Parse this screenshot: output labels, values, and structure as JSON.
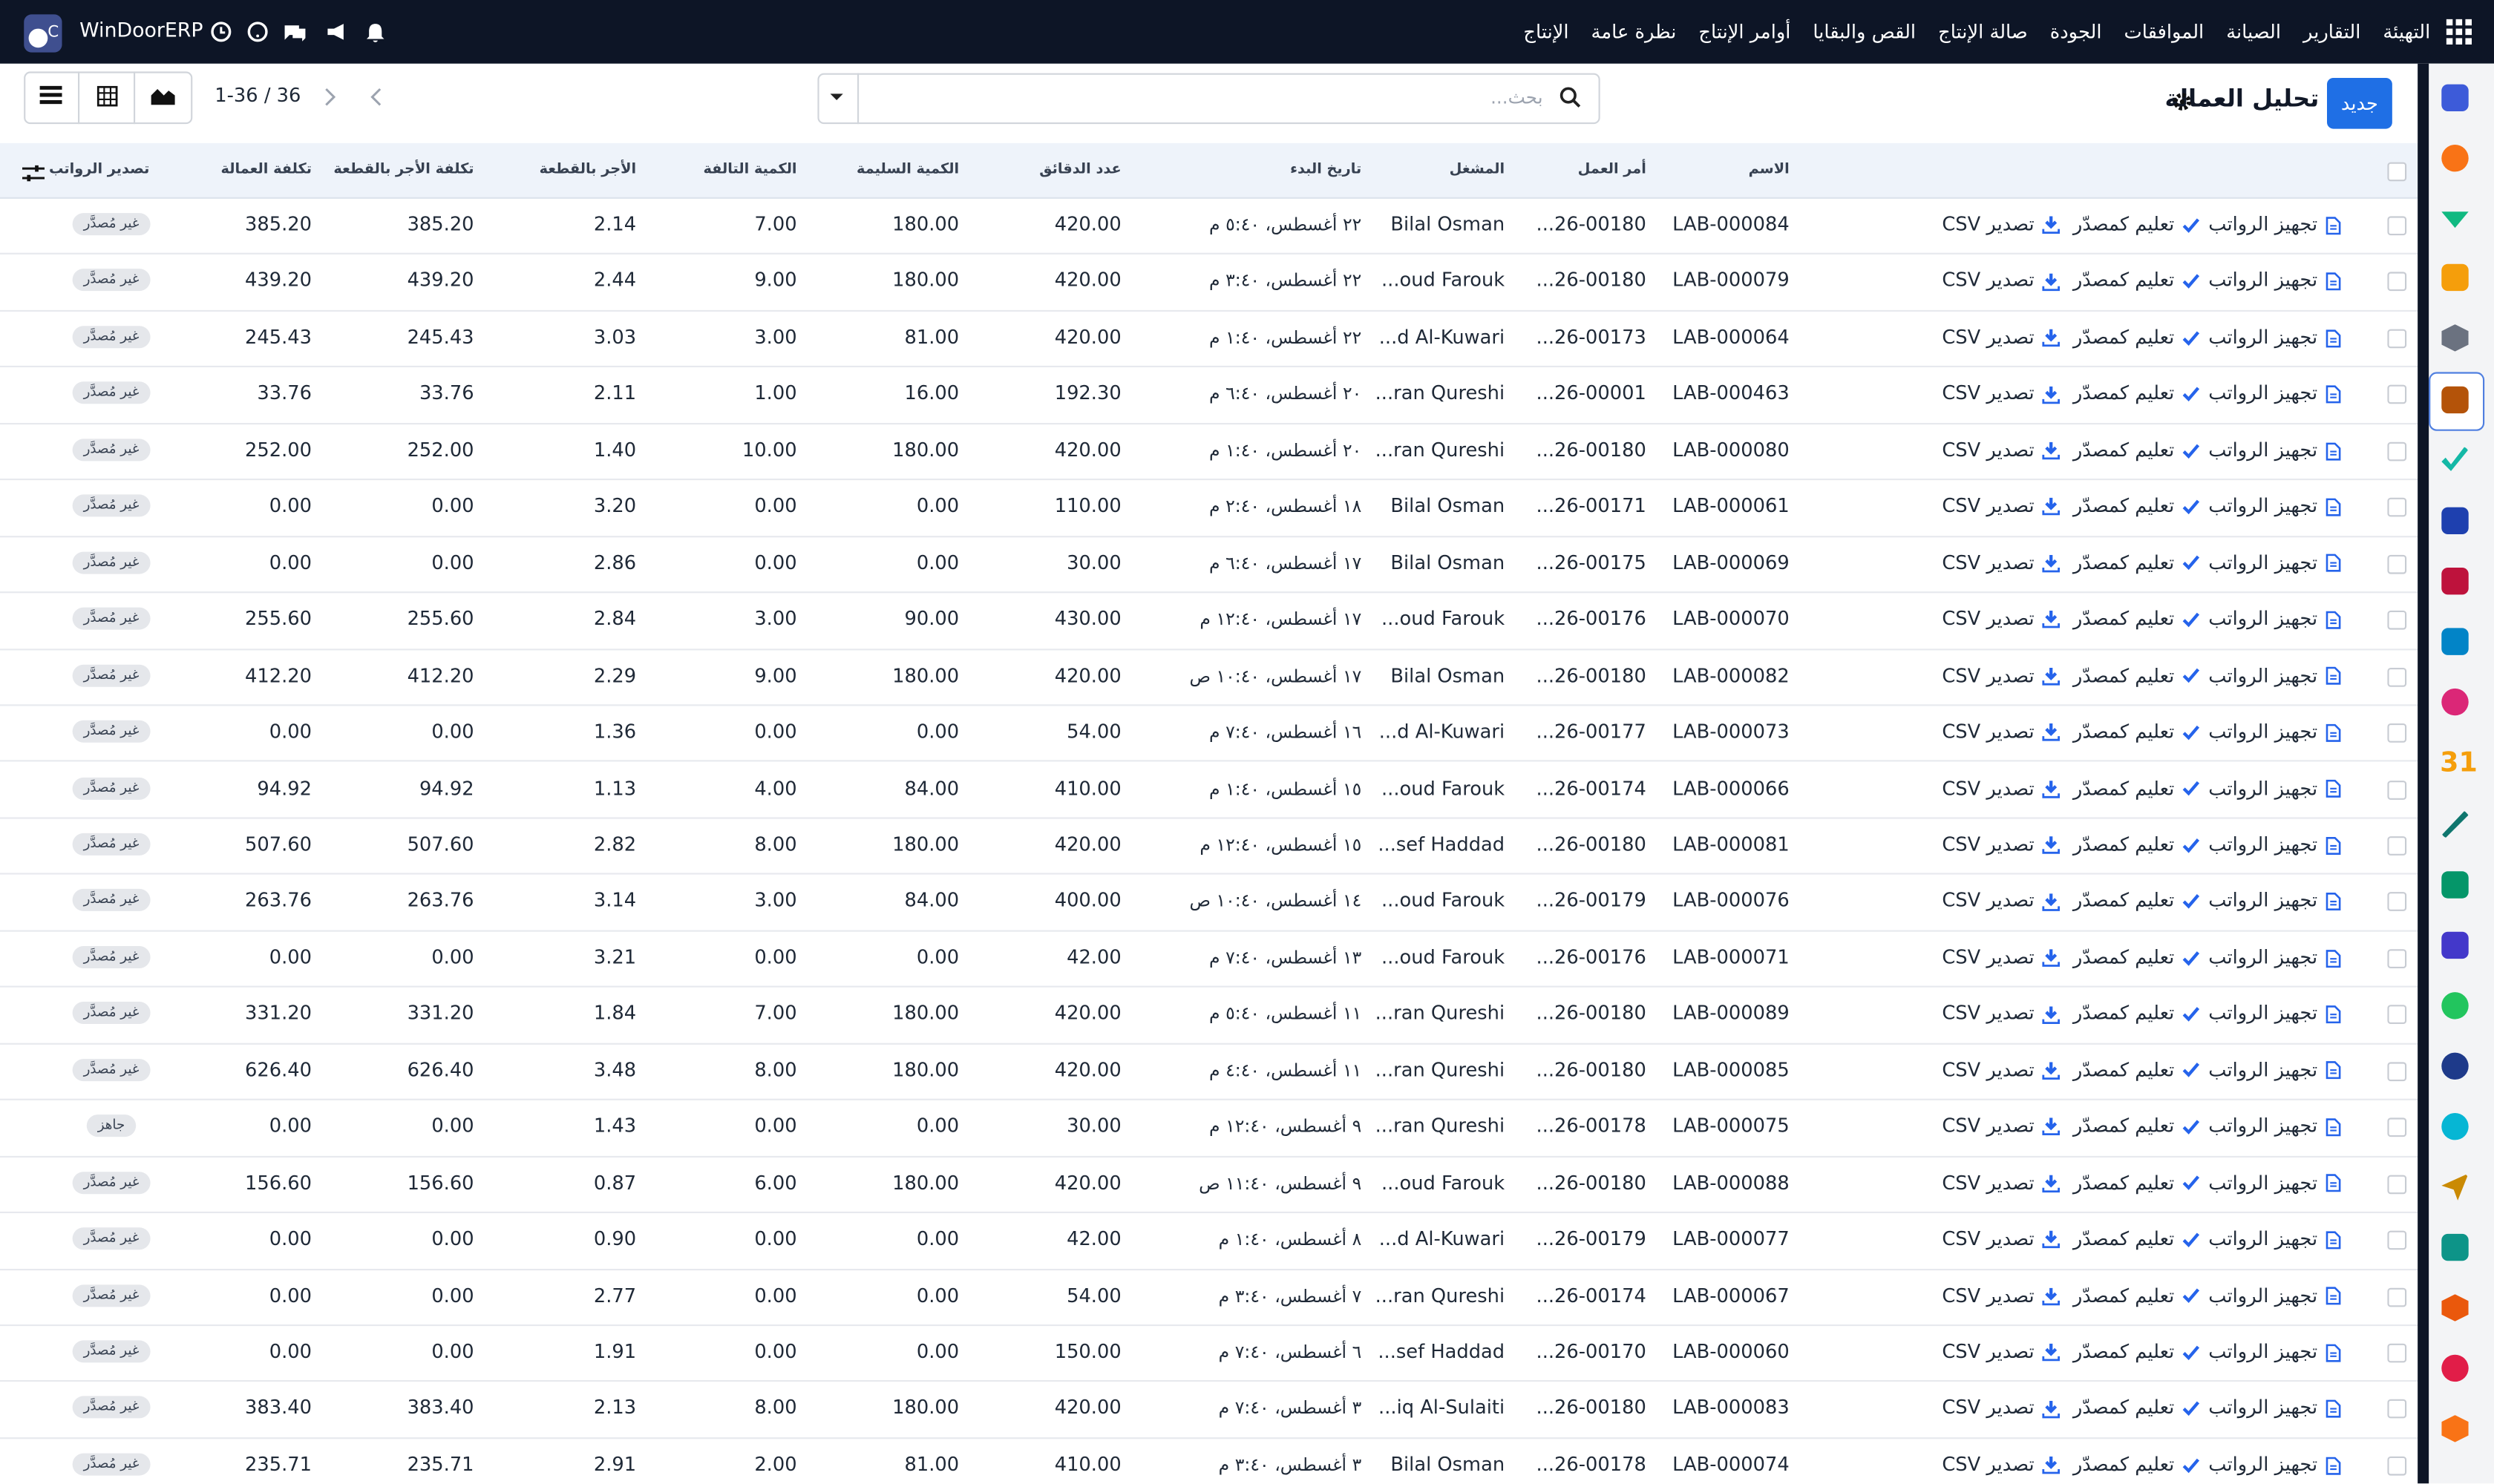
{
  "navbar": {
    "brand": "WinDoorERP",
    "menu": [
      "الإنتاج",
      "نظرة عامة",
      "أوامر الإنتاج",
      "القص والبقايا",
      "صالة الإنتاج",
      "الجودة",
      "الموافقات",
      "الصيانة",
      "التقارير",
      "التهيئة"
    ]
  },
  "control_panel": {
    "new_button": "جديد",
    "title": "تحليل العمالة",
    "search_placeholder": "بحث...",
    "pager": "1-36 / 36"
  },
  "sidebar": {
    "calendar_icon": "31"
  },
  "table": {
    "columns": [
      "الاسم",
      "أمر العمل",
      "المشغل",
      "تاريخ البدء",
      "عدد الدقائق",
      "الكمية السليمة",
      "الكمية التالفة",
      "الأجر بالقطعة",
      "تكلفة الأجر بالقطعة",
      "تكلفة العمالة",
      "تصدير الرواتب"
    ],
    "row_actions": [
      "تجهيز الرواتب",
      "تعليم كمصدّر",
      "تصدير CSV"
    ],
    "rows": [
      [
        "LAB-000084",
        "...26-00180",
        "Bilal Osman",
        "٢٢ أغسطس، ٥:٤٠ م",
        "420.00",
        "180.00",
        "7.00",
        "2.14",
        "385.20",
        "385.20",
        "غير مُصدَّر"
      ],
      [
        "LAB-000079",
        "...26-00180",
        "...oud Farouk",
        "٢٢ أغسطس، ٣:٤٠ م",
        "420.00",
        "180.00",
        "9.00",
        "2.44",
        "439.20",
        "439.20",
        "غير مُصدَّر"
      ],
      [
        "LAB-000064",
        "...26-00173",
        "...d Al-Kuwari",
        "٢٢ أغسطس، ١:٤٠ م",
        "420.00",
        "81.00",
        "3.00",
        "3.03",
        "245.43",
        "245.43",
        "غير مُصدَّر"
      ],
      [
        "LAB-000463",
        "...26-00001",
        "...ran Qureshi",
        "٢٠ أغسطس، ٦:٤٠ م",
        "192.30",
        "16.00",
        "1.00",
        "2.11",
        "33.76",
        "33.76",
        "غير مُصدَّر"
      ],
      [
        "LAB-000080",
        "...26-00180",
        "...ran Qureshi",
        "٢٠ أغسطس، ١:٤٠ م",
        "420.00",
        "180.00",
        "10.00",
        "1.40",
        "252.00",
        "252.00",
        "غير مُصدَّر"
      ],
      [
        "LAB-000061",
        "...26-00171",
        "Bilal Osman",
        "١٨ أغسطس، ٢:٤٠ م",
        "110.00",
        "0.00",
        "0.00",
        "3.20",
        "0.00",
        "0.00",
        "غير مُصدَّر"
      ],
      [
        "LAB-000069",
        "...26-00175",
        "Bilal Osman",
        "١٧ أغسطس، ٦:٤٠ م",
        "30.00",
        "0.00",
        "0.00",
        "2.86",
        "0.00",
        "0.00",
        "غير مُصدَّر"
      ],
      [
        "LAB-000070",
        "...26-00176",
        "...oud Farouk",
        "١٧ أغسطس، ١٢:٤٠ م",
        "430.00",
        "90.00",
        "3.00",
        "2.84",
        "255.60",
        "255.60",
        "غير مُصدَّر"
      ],
      [
        "LAB-000082",
        "...26-00180",
        "Bilal Osman",
        "١٧ أغسطس، ١٠:٤٠ ص",
        "420.00",
        "180.00",
        "9.00",
        "2.29",
        "412.20",
        "412.20",
        "غير مُصدَّر"
      ],
      [
        "LAB-000073",
        "...26-00177",
        "...d Al-Kuwari",
        "١٦ أغسطس، ٧:٤٠ م",
        "54.00",
        "0.00",
        "0.00",
        "1.36",
        "0.00",
        "0.00",
        "غير مُصدَّر"
      ],
      [
        "LAB-000066",
        "...26-00174",
        "...oud Farouk",
        "١٥ أغسطس، ١:٤٠ م",
        "410.00",
        "84.00",
        "4.00",
        "1.13",
        "94.92",
        "94.92",
        "غير مُصدَّر"
      ],
      [
        "LAB-000081",
        "...26-00180",
        "...sef Haddad",
        "١٥ أغسطس، ١٢:٤٠ م",
        "420.00",
        "180.00",
        "8.00",
        "2.82",
        "507.60",
        "507.60",
        "غير مُصدَّر"
      ],
      [
        "LAB-000076",
        "...26-00179",
        "...oud Farouk",
        "١٤ أغسطس، ١٠:٤٠ ص",
        "400.00",
        "84.00",
        "3.00",
        "3.14",
        "263.76",
        "263.76",
        "غير مُصدَّر"
      ],
      [
        "LAB-000071",
        "...26-00176",
        "...oud Farouk",
        "١٣ أغسطس، ٧:٤٠ م",
        "42.00",
        "0.00",
        "0.00",
        "3.21",
        "0.00",
        "0.00",
        "غير مُصدَّر"
      ],
      [
        "LAB-000089",
        "...26-00180",
        "...ran Qureshi",
        "١١ أغسطس، ٥:٤٠ م",
        "420.00",
        "180.00",
        "7.00",
        "1.84",
        "331.20",
        "331.20",
        "غير مُصدَّر"
      ],
      [
        "LAB-000085",
        "...26-00180",
        "...ran Qureshi",
        "١١ أغسطس، ٤:٤٠ م",
        "420.00",
        "180.00",
        "8.00",
        "3.48",
        "626.40",
        "626.40",
        "غير مُصدَّر"
      ],
      [
        "LAB-000075",
        "...26-00178",
        "...ran Qureshi",
        "٩ أغسطس، ١٢:٤٠ م",
        "30.00",
        "0.00",
        "0.00",
        "1.43",
        "0.00",
        "0.00",
        "جاهز"
      ],
      [
        "LAB-000088",
        "...26-00180",
        "...oud Farouk",
        "٩ أغسطس، ١١:٤٠ ص",
        "420.00",
        "180.00",
        "6.00",
        "0.87",
        "156.60",
        "156.60",
        "غير مُصدَّر"
      ],
      [
        "LAB-000077",
        "...26-00179",
        "...d Al-Kuwari",
        "٨ أغسطس، ١:٤٠ م",
        "42.00",
        "0.00",
        "0.00",
        "0.90",
        "0.00",
        "0.00",
        "غير مُصدَّر"
      ],
      [
        "LAB-000067",
        "...26-00174",
        "...ran Qureshi",
        "٧ أغسطس، ٣:٤٠ م",
        "54.00",
        "0.00",
        "0.00",
        "2.77",
        "0.00",
        "0.00",
        "غير مُصدَّر"
      ],
      [
        "LAB-000060",
        "...26-00170",
        "...sef Haddad",
        "٦ أغسطس، ٧:٤٠ م",
        "150.00",
        "0.00",
        "0.00",
        "1.91",
        "0.00",
        "0.00",
        "غير مُصدَّر"
      ],
      [
        "LAB-000083",
        "...26-00180",
        "...iq Al-Sulaiti",
        "٣ أغسطس، ٧:٤٠ م",
        "420.00",
        "180.00",
        "8.00",
        "2.13",
        "383.40",
        "383.40",
        "غير مُصدَّر"
      ],
      [
        "LAB-000074",
        "...26-00178",
        "Bilal Osman",
        "٣ أغسطس، ٣:٤٠ م",
        "410.00",
        "81.00",
        "2.00",
        "2.91",
        "235.71",
        "235.71",
        "غير مُصدَّر"
      ]
    ]
  }
}
